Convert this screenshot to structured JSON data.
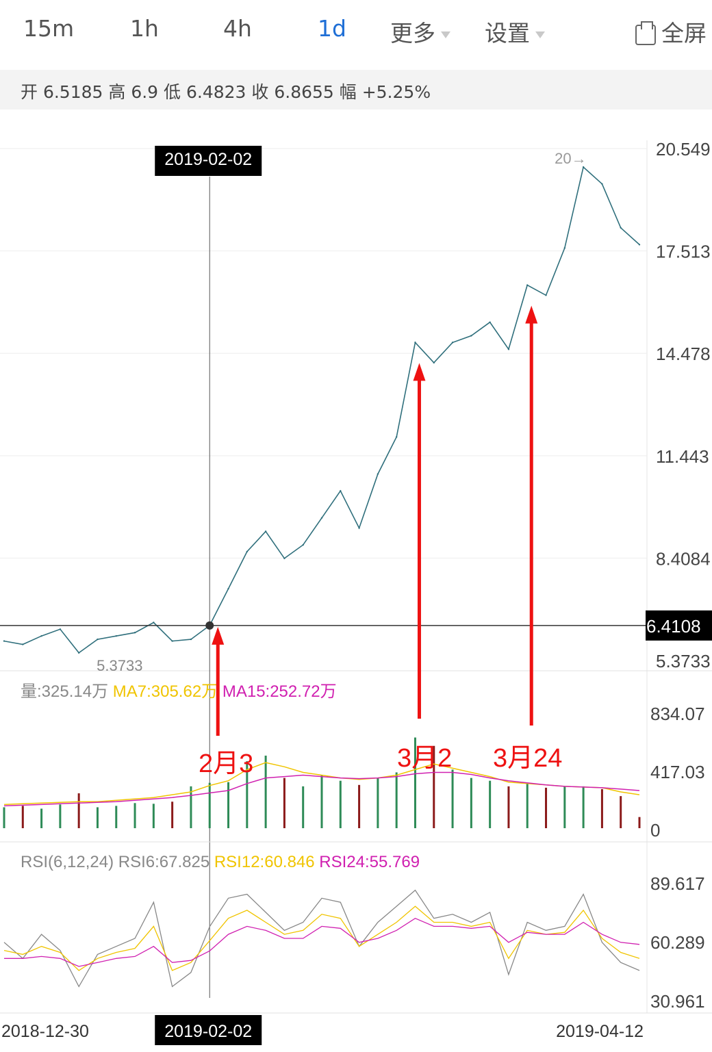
{
  "tabs": [
    {
      "label": "15m",
      "active": false
    },
    {
      "label": "1h",
      "active": false
    },
    {
      "label": "4h",
      "active": false
    },
    {
      "label": "1d",
      "active": true
    },
    {
      "label": "更多",
      "active": false
    },
    {
      "label": "设置",
      "active": false
    }
  ],
  "fullscreen_label": "全屏",
  "ohlc_line": "开 6.5185 高 6.9 低 6.4823 收 6.8655 幅 +5.25%",
  "price_axis_labels": [
    "20.549",
    "17.513",
    "14.478",
    "11.443",
    "8.4084",
    "5.3733"
  ],
  "crosshair": {
    "date": "2019-02-02",
    "price": "6.4108"
  },
  "min_marker": "5.3733",
  "max_marker": "20→",
  "volume_header": {
    "vol": "量:325.14万",
    "ma7": "MA7:305.62万",
    "ma15": "MA15:252.72万"
  },
  "volume_axis_labels": [
    "834.07",
    "417.03",
    "0"
  ],
  "rsi_header": {
    "params": "RSI(6,12,24)",
    "rsi6": "RSI6:67.825",
    "rsi12": "RSI12:60.846",
    "rsi24": "RSI24:55.769"
  },
  "rsi_axis_labels": [
    "89.617",
    "60.289",
    "30.961"
  ],
  "date_labels": {
    "start": "2018-12-30",
    "cursor": "2019-02-02",
    "end": "2019-04-12"
  },
  "annotations": [
    "2月3",
    "3月2",
    "3月24"
  ],
  "colors": {
    "accent": "#1f6fd6",
    "price_line": "#2f6f7c",
    "ma7": "#f0c400",
    "ma15": "#d020b0",
    "up_bar": "#2e8b57",
    "down_bar": "#8b1a1a",
    "arrow": "#ee1111",
    "crosshair": "#333333"
  },
  "chart_data": [
    {
      "type": "line",
      "name": "price",
      "x": [
        "2018-12-30",
        "2019-01-03",
        "2019-01-06",
        "2019-01-09",
        "2019-01-12",
        "2019-01-15",
        "2019-01-18",
        "2019-01-21",
        "2019-01-24",
        "2019-01-27",
        "2019-01-30",
        "2019-02-02",
        "2019-02-05",
        "2019-02-08",
        "2019-02-11",
        "2019-02-14",
        "2019-02-17",
        "2019-02-20",
        "2019-02-23",
        "2019-02-26",
        "2019-03-01",
        "2019-03-04",
        "2019-03-07",
        "2019-03-10",
        "2019-03-13",
        "2019-03-16",
        "2019-03-19",
        "2019-03-22",
        "2019-03-25",
        "2019-03-28",
        "2019-03-31",
        "2019-04-03",
        "2019-04-06",
        "2019-04-09",
        "2019-04-12"
      ],
      "values": [
        5.95,
        5.85,
        6.1,
        6.3,
        5.6,
        6.0,
        6.1,
        6.2,
        6.5,
        5.95,
        6.0,
        6.41,
        7.5,
        8.6,
        9.2,
        8.4,
        8.8,
        9.6,
        10.4,
        9.3,
        10.9,
        12.0,
        14.8,
        14.2,
        14.8,
        15.0,
        15.4,
        14.6,
        16.5,
        16.2,
        17.6,
        20.0,
        19.5,
        18.2,
        17.7
      ],
      "ylim": [
        5.3733,
        20.549
      ],
      "min_label": "5.3733",
      "max_label": "20→"
    },
    {
      "type": "bar",
      "name": "volume",
      "values_wan": [
        150,
        160,
        140,
        170,
        250,
        150,
        160,
        180,
        175,
        190,
        300,
        325.14,
        330,
        480,
        520,
        360,
        300,
        380,
        340,
        310,
        360,
        400,
        650,
        590,
        420,
        360,
        340,
        300,
        320,
        290,
        300,
        300,
        280,
        230,
        80
      ],
      "ma7_wan": [
        170,
        175,
        180,
        185,
        190,
        190,
        200,
        210,
        220,
        240,
        260,
        305.62,
        340,
        420,
        470,
        440,
        400,
        380,
        360,
        350,
        360,
        380,
        420,
        460,
        430,
        400,
        370,
        330,
        320,
        310,
        300,
        295,
        290,
        260,
        240
      ],
      "ma15_wan": [
        160,
        165,
        170,
        175,
        180,
        185,
        190,
        200,
        210,
        220,
        235,
        252.72,
        270,
        320,
        360,
        370,
        380,
        370,
        360,
        355,
        360,
        370,
        390,
        400,
        400,
        385,
        360,
        340,
        325,
        310,
        300,
        295,
        290,
        280,
        270
      ],
      "ylim": [
        0,
        834.07
      ]
    },
    {
      "type": "line",
      "name": "RSI",
      "series": [
        {
          "name": "RSI6",
          "values": [
            60,
            52,
            64,
            56,
            38,
            54,
            58,
            62,
            80,
            38,
            45,
            67.825,
            82,
            84,
            75,
            66,
            70,
            82,
            80,
            58,
            70,
            78,
            86,
            72,
            74,
            70,
            75,
            44,
            70,
            66,
            68,
            84,
            60,
            50,
            46
          ]
        },
        {
          "name": "RSI12",
          "values": [
            56,
            54,
            58,
            55,
            46,
            52,
            55,
            57,
            68,
            46,
            50,
            60.846,
            72,
            76,
            70,
            64,
            66,
            74,
            72,
            58,
            64,
            70,
            78,
            70,
            70,
            68,
            70,
            52,
            66,
            64,
            65,
            76,
            62,
            55,
            52
          ]
        },
        {
          "name": "RSI24",
          "values": [
            52,
            52,
            53,
            52,
            48,
            50,
            52,
            53,
            58,
            50,
            51,
            55.769,
            64,
            68,
            66,
            62,
            62,
            68,
            67,
            60,
            62,
            66,
            72,
            68,
            68,
            67,
            68,
            60,
            65,
            64,
            64,
            70,
            64,
            60,
            59
          ]
        }
      ],
      "ylim": [
        30.961,
        89.617
      ]
    }
  ]
}
